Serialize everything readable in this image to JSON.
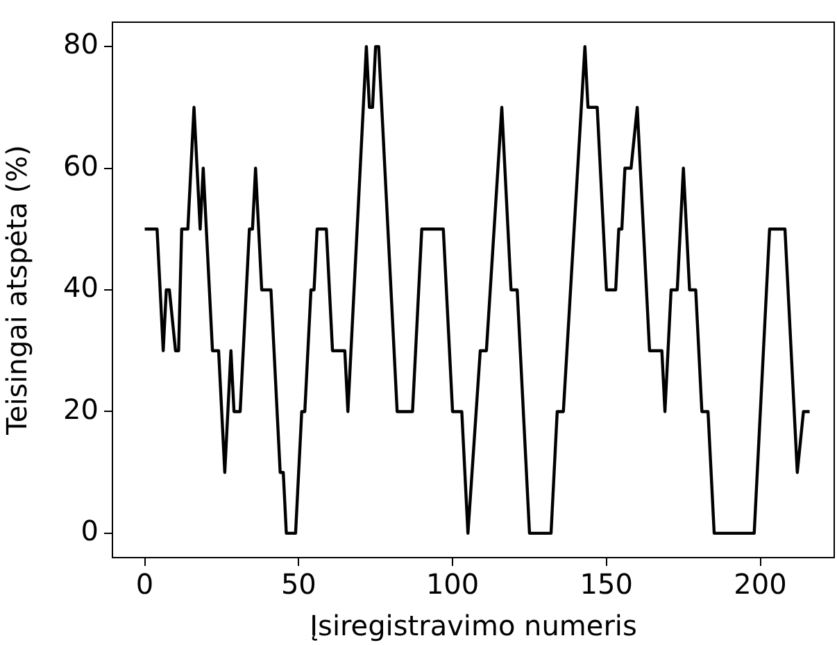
{
  "chart_data": {
    "type": "line",
    "xlabel": "Įsiregistravimo numeris",
    "ylabel": "Teisingai atspėta (%)",
    "series": [
      {
        "color": "#000000",
        "x": [
          0,
          4,
          6,
          7,
          8,
          10,
          11,
          12,
          14,
          16,
          18,
          19,
          22,
          24,
          26,
          28,
          29,
          31,
          34,
          35,
          36,
          38,
          41,
          44,
          45,
          46,
          49,
          51,
          52,
          54,
          55,
          56,
          59,
          61,
          65,
          66,
          72,
          73,
          74,
          75,
          76,
          82,
          87,
          90,
          97,
          100,
          103,
          105,
          109,
          111,
          116,
          119,
          121,
          125,
          132,
          134,
          136,
          143,
          144,
          147,
          150,
          153,
          154,
          155,
          156,
          158,
          160,
          164,
          168,
          169,
          171,
          173,
          175,
          177,
          179,
          181,
          183,
          185,
          198,
          203,
          208,
          212,
          214,
          216
        ],
        "values": [
          50,
          50,
          30,
          40,
          40,
          30,
          30,
          50,
          50,
          70,
          50,
          60,
          30,
          30,
          10,
          30,
          20,
          20,
          50,
          50,
          60,
          40,
          40,
          10,
          10,
          0,
          0,
          20,
          20,
          40,
          40,
          50,
          50,
          30,
          30,
          20,
          80,
          70,
          70,
          80,
          80,
          20,
          20,
          50,
          50,
          20,
          20,
          0,
          30,
          30,
          70,
          40,
          40,
          0,
          0,
          20,
          20,
          80,
          70,
          70,
          40,
          40,
          50,
          50,
          60,
          60,
          70,
          30,
          30,
          20,
          40,
          40,
          60,
          40,
          40,
          20,
          20,
          0,
          0,
          50,
          50,
          10,
          20,
          20
        ]
      }
    ],
    "xlim": [
      -10.5,
      224
    ],
    "xticks": [
      0,
      50,
      100,
      150,
      200
    ],
    "ylim": [
      -4,
      84
    ],
    "yticks": [
      0,
      20,
      40,
      60,
      80
    ],
    "grid": false,
    "legend": false,
    "marker": "none",
    "line_style": "solid"
  }
}
